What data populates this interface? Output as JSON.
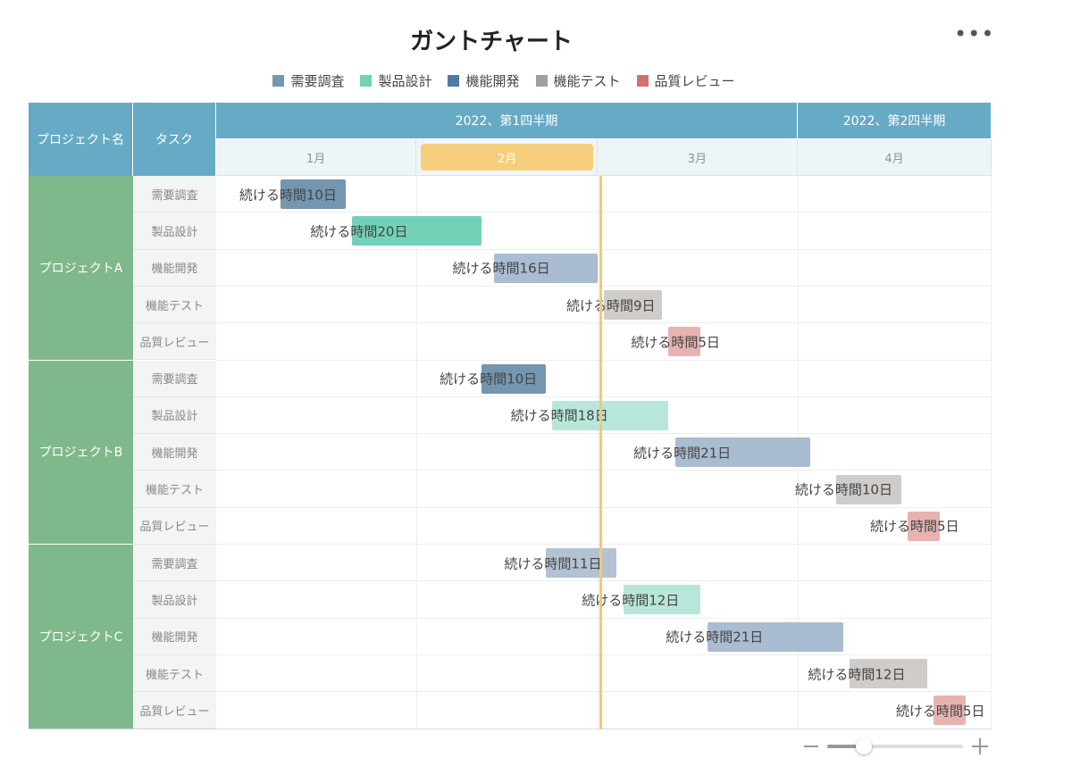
{
  "chart_data": {
    "type": "gantt",
    "title": "ガントチャート",
    "columns": {
      "project": "プロジェクト名",
      "task": "タスク"
    },
    "quarters": [
      {
        "label": "2022、第1四半期",
        "months": [
          1,
          3
        ]
      },
      {
        "label": "2022、第2四半期",
        "months": [
          4,
          4
        ]
      }
    ],
    "months": [
      "1月",
      "2月",
      "3月",
      "4月"
    ],
    "highlighted_month": "2月",
    "today_day": 59.5,
    "categories": [
      {
        "name": "需要調査",
        "color": "#7497b2"
      },
      {
        "name": "製品設計",
        "color": "#72d2b8"
      },
      {
        "name": "機能開発",
        "color": "#4e7ba6"
      },
      {
        "name": "機能テスト",
        "color": "#a39e99"
      },
      {
        "name": "品質レビュー",
        "color": "#d1726e"
      }
    ],
    "projects": [
      {
        "name": "プロジェクトA",
        "tasks": [
          {
            "task": "需要調査",
            "start_day": 10,
            "duration": 10,
            "label": "続ける時間10日",
            "color": "#7496b0",
            "opacity": 1
          },
          {
            "task": "製品設計",
            "start_day": 21,
            "duration": 20,
            "label": "続ける時間20日",
            "color": "#73d1b8",
            "opacity": 1
          },
          {
            "task": "機能開発",
            "start_day": 43,
            "duration": 16,
            "label": "続ける時間16日",
            "color": "#a9bcd2",
            "opacity": 1
          },
          {
            "task": "機能テスト",
            "start_day": 60,
            "duration": 9,
            "label": "続ける時間9日",
            "color": "#cfccc9",
            "opacity": 1
          },
          {
            "task": "品質レビュー",
            "start_day": 70,
            "duration": 5,
            "label": "続ける時間5日",
            "color": "#e6b3b1",
            "opacity": 1
          }
        ]
      },
      {
        "name": "プロジェクトB",
        "tasks": [
          {
            "task": "需要調査",
            "start_day": 41,
            "duration": 10,
            "label": "続ける時間10日",
            "color": "#7496b0",
            "opacity": 1
          },
          {
            "task": "製品設計",
            "start_day": 52,
            "duration": 18,
            "label": "続ける時間18日",
            "color": "#b9e6da",
            "opacity": 1
          },
          {
            "task": "機能開発",
            "start_day": 71,
            "duration": 21,
            "label": "続ける時間21日",
            "color": "#a9bcd2",
            "opacity": 1
          },
          {
            "task": "機能テスト",
            "start_day": 96,
            "duration": 10,
            "label": "続ける時間10日",
            "color": "#cfccc9",
            "opacity": 1
          },
          {
            "task": "品質レビュー",
            "start_day": 107,
            "duration": 5,
            "label": "続ける時間5日",
            "color": "#e6b3b1",
            "opacity": 1
          }
        ]
      },
      {
        "name": "プロジェクトC",
        "tasks": [
          {
            "task": "需要調査",
            "start_day": 51,
            "duration": 11,
            "label": "続ける時間11日",
            "color": "#b3c3d1",
            "opacity": 1
          },
          {
            "task": "製品設計",
            "start_day": 63,
            "duration": 12,
            "label": "続ける時間12日",
            "color": "#b9e6da",
            "opacity": 1
          },
          {
            "task": "機能開発",
            "start_day": 76,
            "duration": 21,
            "label": "続ける時間21日",
            "color": "#a9bcd2",
            "opacity": 1
          },
          {
            "task": "機能テスト",
            "start_day": 98,
            "duration": 12,
            "label": "続ける時間12日",
            "color": "#cfccc9",
            "opacity": 1
          },
          {
            "task": "品質レビュー",
            "start_day": 111,
            "duration": 5,
            "label": "続ける時間5日",
            "color": "#e6b3b1",
            "opacity": 1
          }
        ]
      }
    ]
  },
  "zoom": {
    "level": 0.27
  }
}
